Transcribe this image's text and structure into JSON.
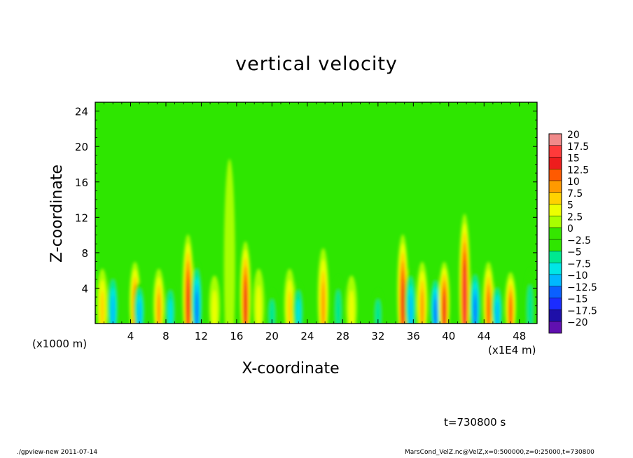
{
  "chart_data": {
    "type": "heatmap",
    "title": "vertical velocity",
    "xlabel": "X-coordinate",
    "ylabel": "Z-coordinate",
    "x_unit_left": "(x1000 m)",
    "x_unit_right": "(x1E4 m)",
    "xlim": [
      0,
      50
    ],
    "ylim": [
      0,
      25
    ],
    "x_ticks": [
      "4",
      "8",
      "12",
      "16",
      "20",
      "24",
      "28",
      "32",
      "36",
      "40",
      "44",
      "48"
    ],
    "y_ticks": [
      "4",
      "8",
      "12",
      "16",
      "20",
      "24"
    ],
    "colorbar_labels": [
      "20",
      "17.5",
      "15",
      "12.5",
      "10",
      "7.5",
      "5",
      "2.5",
      "0",
      "−2.5",
      "−5",
      "−7.5",
      "−10",
      "−12.5",
      "−15",
      "−17.5",
      "−20"
    ],
    "colorbar_colors": [
      "#f08a8a",
      "#ff3a3a",
      "#ee1d1d",
      "#ff5a00",
      "#ff9a00",
      "#ffd200",
      "#ecff00",
      "#a8ff00",
      "#35e600",
      "#2fe600",
      "#00e890",
      "#00e6e6",
      "#00b8ff",
      "#0a60ff",
      "#1b2cff",
      "#1e0fa8",
      "#6010b0"
    ],
    "features": [
      {
        "x": 0.8,
        "z_top": 8.0,
        "amplitude": 8
      },
      {
        "x": 2.0,
        "z_top": 7.5,
        "amplitude": -12
      },
      {
        "x": 4.5,
        "z_top": 9.0,
        "amplitude": 14
      },
      {
        "x": 5.0,
        "z_top": 6.0,
        "amplitude": -12
      },
      {
        "x": 7.2,
        "z_top": 8.0,
        "amplitude": 10
      },
      {
        "x": 8.5,
        "z_top": 6.0,
        "amplitude": -9
      },
      {
        "x": 10.5,
        "z_top": 13.0,
        "amplitude": 17
      },
      {
        "x": 11.5,
        "z_top": 9.0,
        "amplitude": -13
      },
      {
        "x": 13.5,
        "z_top": 7.0,
        "amplitude": 7
      },
      {
        "x": 15.2,
        "z_top": 24.0,
        "amplitude": 4
      },
      {
        "x": 17.0,
        "z_top": 12.0,
        "amplitude": 17
      },
      {
        "x": 18.5,
        "z_top": 8.0,
        "amplitude": 7
      },
      {
        "x": 20.0,
        "z_top": 5.0,
        "amplitude": -7
      },
      {
        "x": 22.0,
        "z_top": 8.0,
        "amplitude": 8
      },
      {
        "x": 23.0,
        "z_top": 6.0,
        "amplitude": -8
      },
      {
        "x": 25.8,
        "z_top": 11.0,
        "amplitude": 12
      },
      {
        "x": 27.5,
        "z_top": 7.0,
        "amplitude": -6
      },
      {
        "x": 29.0,
        "z_top": 7.0,
        "amplitude": 6
      },
      {
        "x": 32.0,
        "z_top": 5.0,
        "amplitude": -6
      },
      {
        "x": 34.8,
        "z_top": 13.0,
        "amplitude": 16
      },
      {
        "x": 35.7,
        "z_top": 8.0,
        "amplitude": -11
      },
      {
        "x": 37.0,
        "z_top": 9.0,
        "amplitude": 10
      },
      {
        "x": 38.5,
        "z_top": 7.0,
        "amplitude": -13
      },
      {
        "x": 39.5,
        "z_top": 9.0,
        "amplitude": 16
      },
      {
        "x": 41.8,
        "z_top": 16.0,
        "amplitude": 18
      },
      {
        "x": 43.0,
        "z_top": 8.0,
        "amplitude": -14
      },
      {
        "x": 44.5,
        "z_top": 9.0,
        "amplitude": 14
      },
      {
        "x": 45.5,
        "z_top": 6.0,
        "amplitude": -10
      },
      {
        "x": 47.0,
        "z_top": 7.5,
        "amplitude": 13
      },
      {
        "x": 49.2,
        "z_top": 8.0,
        "amplitude": -7
      }
    ]
  },
  "time_label": "t=730800 s",
  "footer_left": "./gpview-new   2011-07-14",
  "footer_right": "MarsCond_VelZ.nc@VelZ,x=0:500000,z=0:25000,t=730800"
}
